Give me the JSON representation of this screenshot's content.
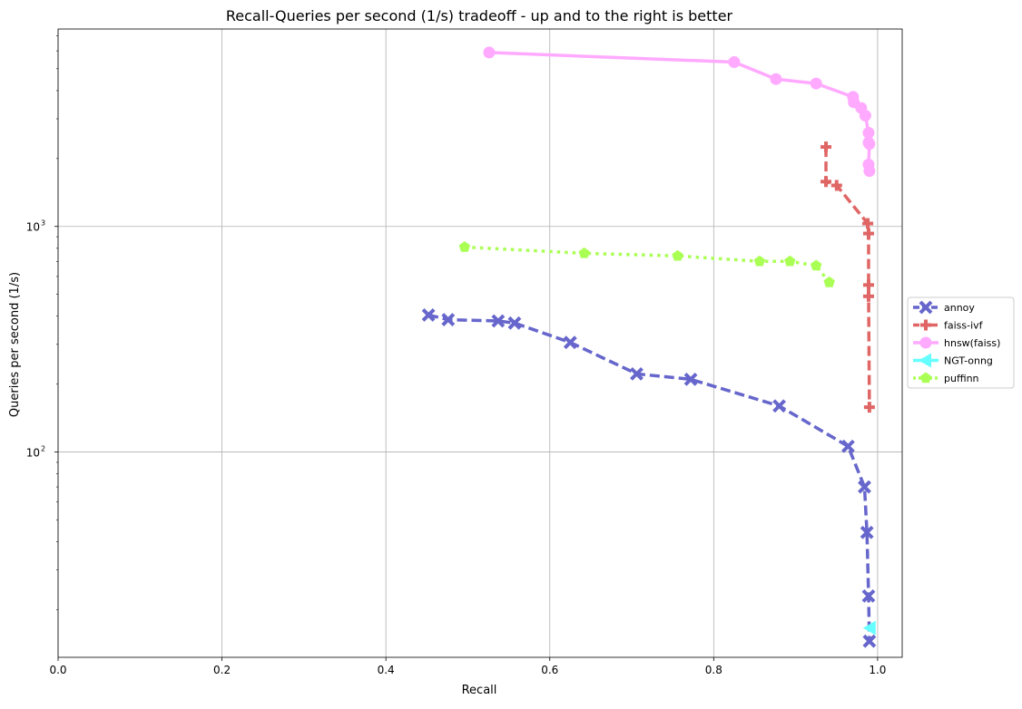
{
  "chart_data": {
    "type": "line",
    "title": "Recall-Queries per second (1/s) tradeoff - up and to the right is better",
    "xlabel": "Recall",
    "ylabel": "Queries per second (1/s)",
    "xlim": [
      0.0,
      1.03
    ],
    "ylim": [
      12.3,
      7500
    ],
    "y_scale": "log",
    "grid": true,
    "legend_position": "center-right outside",
    "x_ticks": [
      0.0,
      0.2,
      0.4,
      0.6,
      0.8,
      1.0
    ],
    "x_tick_labels": [
      "0.0",
      "0.2",
      "0.4",
      "0.6",
      "0.8",
      "1.0"
    ],
    "y_major_ticks": [
      100,
      1000
    ],
    "y_tick_labels": [
      {
        "base": "10",
        "exp": "2"
      },
      {
        "base": "10",
        "exp": "3"
      }
    ],
    "y_minor_ticks": [
      20,
      30,
      40,
      50,
      60,
      70,
      80,
      90,
      200,
      300,
      400,
      500,
      600,
      700,
      800,
      900,
      2000,
      3000,
      4000,
      5000,
      6000,
      7000
    ],
    "series": [
      {
        "name": "annoy",
        "color": "#6666cc",
        "dash": "dashed",
        "marker": "x",
        "x": [
          0.452,
          0.476,
          0.537,
          0.557,
          0.625,
          0.706,
          0.772,
          0.88,
          0.964,
          0.984,
          0.987,
          0.989,
          0.99
        ],
        "y": [
          405,
          386,
          381,
          373,
          306,
          222,
          210,
          160,
          106,
          70,
          44,
          23,
          14.5
        ]
      },
      {
        "name": "faiss-ivf",
        "color": "#e06666",
        "dash": "dashed",
        "marker": "plus",
        "x": [
          0.937,
          0.937,
          0.95,
          0.988,
          0.989,
          0.989,
          0.989,
          0.99
        ],
        "y": [
          2250,
          1580,
          1520,
          1030,
          930,
          550,
          490,
          158
        ]
      },
      {
        "name": "hnsw(faiss)",
        "color": "#ffaaff",
        "dash": "solid",
        "marker": "circle",
        "x": [
          0.526,
          0.825,
          0.876,
          0.925,
          0.97,
          0.971,
          0.98,
          0.985,
          0.989,
          0.989,
          0.99,
          0.989,
          0.99
        ],
        "y": [
          5900,
          5350,
          4500,
          4300,
          3750,
          3550,
          3350,
          3100,
          2600,
          2350,
          2320,
          1880,
          1760
        ]
      },
      {
        "name": "NGT-onng",
        "color": "#66ffff",
        "dash": "solid",
        "marker": "triangle-left",
        "x": [
          0.991
        ],
        "y": [
          16.6
        ]
      },
      {
        "name": "puffinn",
        "color": "#aaff55",
        "dash": "dotted",
        "marker": "pentagon",
        "x": [
          0.496,
          0.642,
          0.756,
          0.856,
          0.893,
          0.925,
          0.941
        ],
        "y": [
          810,
          760,
          740,
          700,
          700,
          670,
          565
        ]
      }
    ]
  }
}
